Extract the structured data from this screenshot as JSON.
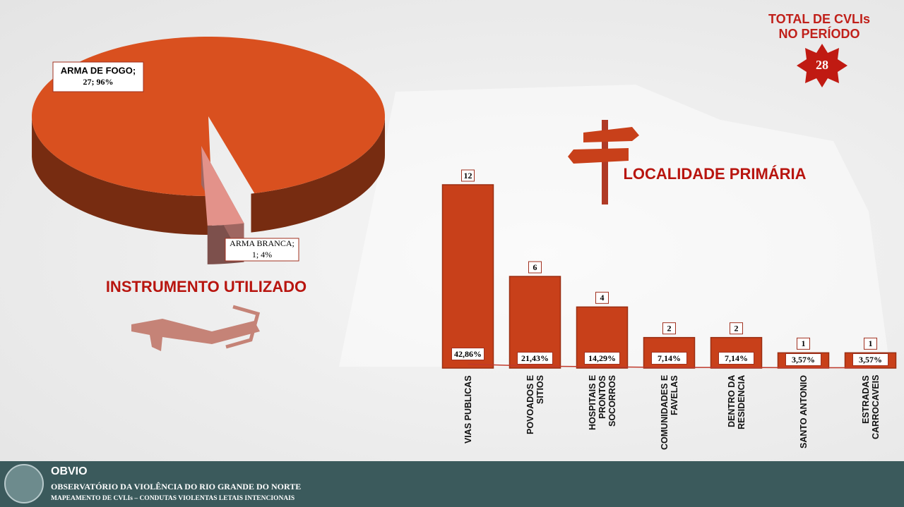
{
  "header": {
    "total_lines": [
      "TOTAL DE CVLIs",
      "NO PERÍODO"
    ],
    "total_value": 28
  },
  "chart_data": [
    {
      "type": "pie",
      "title": "INSTRUMENTO UTILIZADO",
      "categories": [
        "ARMA DE FOGO;",
        "ARMA BRANCA;"
      ],
      "values": [
        27,
        1
      ],
      "value_labels": [
        "27; 96%",
        "1; 4%"
      ],
      "colors": [
        "#d9501f",
        "#e3928a"
      ]
    },
    {
      "type": "bar",
      "title": "LOCALIDADE PRIMÁRIA",
      "categories": [
        "VIAS PUBLICAS",
        "POVOADOS E SITIOS",
        "HOSPITAIS E PRONTOS SOCORROS",
        "COMUNIDADES E FAVELAS",
        "DENTRO DA RESIDENCIA",
        "SANTO ANTONIO",
        "ESTRADAS CARROCAVEIS"
      ],
      "ylim": [
        0,
        12
      ],
      "y2lim": [
        0,
        2000
      ],
      "series": [
        {
          "color": "#c8401a",
          "values": [
            12,
            6,
            4,
            2,
            2,
            1,
            1
          ]
        },
        {
          "type": "line",
          "axis": "y2",
          "color": "#c0392b",
          "values": [
            42.86,
            21.43,
            14.29,
            7.14,
            7.14,
            3.57,
            3.57
          ],
          "value_labels": [
            "42,86%",
            "21,43%",
            "14,29%",
            "7,14%",
            "7,14%",
            "3,57%",
            "3,57%"
          ]
        }
      ]
    }
  ],
  "footer": {
    "brand": "OBVIO",
    "line1": "OBSERVATÓRIO  DA VIOLÊNCIA  DO RIO GRANDE DO NORTE",
    "line2": "MAPEAMENTO DE CVLIs – CONDUTAS VIOLENTAS LETAIS INTENCIONAIS"
  }
}
